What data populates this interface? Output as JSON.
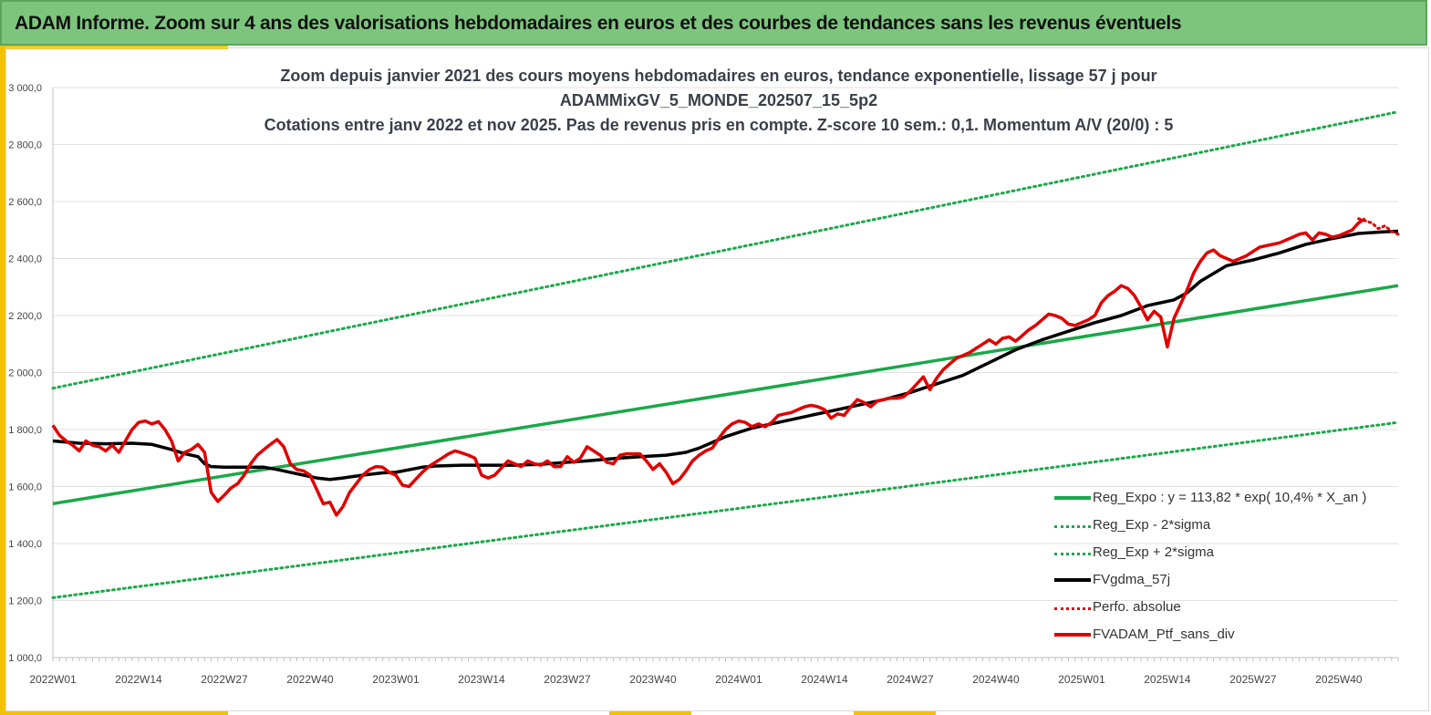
{
  "header": {
    "title": "ADAM Informe. Zoom sur 4 ans des valorisations hebdomadaires en euros et des courbes de tendances sans les revenus éventuels"
  },
  "colors": {
    "banner": "#7dc57d",
    "accent": "#f2c200",
    "trend_green": "#1aa84a",
    "black": "#000000",
    "red": "#e00000"
  },
  "chart_data": {
    "type": "line",
    "title_lines": [
      "Zoom depuis janvier 2021 des cours moyens hebdomadaires  en euros, tendance exponentielle, lissage 57 j pour",
      "ADAMMixGV_5_MONDE_202507_15_5p2",
      "Cotations  entre janv 2022 et nov 2025. Pas de revenus pris en compte. Z-score 10 sem.: 0,1. Momentum  A/V (20/0) : 5"
    ],
    "x_tick_labels": [
      "2022W01",
      "2022W14",
      "2022W27",
      "2022W40",
      "2023W01",
      "2023W14",
      "2023W27",
      "2023W40",
      "2024W01",
      "2024W14",
      "2024W27",
      "2024W40",
      "2025W01",
      "2025W14",
      "2025W27",
      "2025W40"
    ],
    "x_tick_week_index": [
      0,
      13,
      26,
      39,
      52,
      65,
      78,
      91,
      104,
      117,
      130,
      143,
      156,
      169,
      182,
      195
    ],
    "x_range_weeks": [
      0,
      204
    ],
    "ylim": [
      1000,
      3000
    ],
    "y_ticks": [
      1000,
      1200,
      1400,
      1600,
      1800,
      2000,
      2200,
      2400,
      2600,
      2800,
      3000
    ],
    "y_tick_labels": [
      "1 000,0",
      "1 200,0",
      "1 400,0",
      "1 600,0",
      "1 800,0",
      "2 000,0",
      "2 200,0",
      "2 400,0",
      "2 600,0",
      "2 800,0",
      "3 000,0"
    ],
    "grid": "horizontal",
    "legend_position": "bottom-right",
    "series": [
      {
        "name": "Reg_Expo : y = 113,82 * exp( 10,4% *  X_an )",
        "style": "solid",
        "color": "#1aa84a",
        "points": [
          [
            0,
            1540
          ],
          [
            204,
            2305
          ]
        ]
      },
      {
        "name": "Reg_Exp - 2*sigma",
        "style": "dotted",
        "color": "#1aa84a",
        "points": [
          [
            0,
            1210
          ],
          [
            204,
            1825
          ]
        ]
      },
      {
        "name": "Reg_Exp + 2*sigma",
        "style": "dotted",
        "color": "#1aa84a",
        "points": [
          [
            0,
            1945
          ],
          [
            204,
            2915
          ]
        ]
      },
      {
        "name": "FVgdma_57j",
        "style": "solid",
        "color": "#000000",
        "points": [
          [
            0,
            1760
          ],
          [
            4,
            1752
          ],
          [
            8,
            1750
          ],
          [
            12,
            1752
          ],
          [
            15,
            1748
          ],
          [
            18,
            1730
          ],
          [
            20,
            1715
          ],
          [
            22,
            1705
          ],
          [
            23,
            1680
          ],
          [
            24,
            1670
          ],
          [
            26,
            1668
          ],
          [
            30,
            1668
          ],
          [
            32,
            1668
          ],
          [
            34,
            1660
          ],
          [
            36,
            1650
          ],
          [
            38,
            1640
          ],
          [
            40,
            1630
          ],
          [
            42,
            1625
          ],
          [
            44,
            1630
          ],
          [
            47,
            1640
          ],
          [
            50,
            1648
          ],
          [
            52,
            1650
          ],
          [
            56,
            1668
          ],
          [
            58,
            1672
          ],
          [
            62,
            1675
          ],
          [
            66,
            1675
          ],
          [
            70,
            1675
          ],
          [
            74,
            1678
          ],
          [
            78,
            1685
          ],
          [
            82,
            1692
          ],
          [
            86,
            1700
          ],
          [
            90,
            1706
          ],
          [
            93,
            1710
          ],
          [
            96,
            1720
          ],
          [
            98,
            1735
          ],
          [
            100,
            1755
          ],
          [
            102,
            1775
          ],
          [
            104,
            1790
          ],
          [
            106,
            1805
          ],
          [
            108,
            1815
          ],
          [
            110,
            1825
          ],
          [
            114,
            1845
          ],
          [
            118,
            1865
          ],
          [
            122,
            1885
          ],
          [
            126,
            1905
          ],
          [
            130,
            1930
          ],
          [
            134,
            1960
          ],
          [
            138,
            1990
          ],
          [
            142,
            2035
          ],
          [
            146,
            2080
          ],
          [
            150,
            2115
          ],
          [
            154,
            2145
          ],
          [
            158,
            2175
          ],
          [
            162,
            2200
          ],
          [
            166,
            2235
          ],
          [
            170,
            2255
          ],
          [
            172,
            2280
          ],
          [
            174,
            2320
          ],
          [
            178,
            2375
          ],
          [
            182,
            2395
          ],
          [
            186,
            2420
          ],
          [
            190,
            2450
          ],
          [
            194,
            2470
          ],
          [
            198,
            2488
          ],
          [
            202,
            2494
          ],
          [
            204,
            2496
          ]
        ]
      },
      {
        "name": "Perfo. absolue",
        "style": "dotted",
        "color": "#e00000",
        "points": [
          [
            198,
            2540
          ],
          [
            200,
            2525
          ],
          [
            201,
            2505
          ],
          [
            202,
            2515
          ],
          [
            203,
            2495
          ],
          [
            204,
            2485
          ]
        ]
      },
      {
        "name": "FVADAM_Ptf_sans_div",
        "style": "solid",
        "color": "#e00000",
        "points": [
          [
            0,
            1815
          ],
          [
            1,
            1780
          ],
          [
            2,
            1760
          ],
          [
            3,
            1745
          ],
          [
            4,
            1725
          ],
          [
            5,
            1760
          ],
          [
            6,
            1745
          ],
          [
            7,
            1740
          ],
          [
            8,
            1725
          ],
          [
            9,
            1745
          ],
          [
            10,
            1720
          ],
          [
            11,
            1760
          ],
          [
            12,
            1800
          ],
          [
            13,
            1825
          ],
          [
            14,
            1830
          ],
          [
            15,
            1820
          ],
          [
            16,
            1828
          ],
          [
            17,
            1800
          ],
          [
            18,
            1760
          ],
          [
            19,
            1690
          ],
          [
            20,
            1720
          ],
          [
            21,
            1730
          ],
          [
            22,
            1748
          ],
          [
            23,
            1720
          ],
          [
            24,
            1580
          ],
          [
            25,
            1548
          ],
          [
            26,
            1570
          ],
          [
            27,
            1595
          ],
          [
            28,
            1610
          ],
          [
            29,
            1640
          ],
          [
            30,
            1680
          ],
          [
            31,
            1710
          ],
          [
            32,
            1730
          ],
          [
            33,
            1748
          ],
          [
            34,
            1765
          ],
          [
            35,
            1740
          ],
          [
            36,
            1680
          ],
          [
            37,
            1660
          ],
          [
            38,
            1655
          ],
          [
            39,
            1640
          ],
          [
            40,
            1590
          ],
          [
            41,
            1540
          ],
          [
            42,
            1545
          ],
          [
            43,
            1500
          ],
          [
            44,
            1530
          ],
          [
            45,
            1580
          ],
          [
            46,
            1610
          ],
          [
            47,
            1640
          ],
          [
            48,
            1660
          ],
          [
            49,
            1670
          ],
          [
            50,
            1668
          ],
          [
            51,
            1650
          ],
          [
            52,
            1640
          ],
          [
            53,
            1605
          ],
          [
            54,
            1600
          ],
          [
            55,
            1625
          ],
          [
            56,
            1650
          ],
          [
            57,
            1670
          ],
          [
            58,
            1685
          ],
          [
            59,
            1700
          ],
          [
            60,
            1715
          ],
          [
            61,
            1725
          ],
          [
            62,
            1718
          ],
          [
            63,
            1710
          ],
          [
            64,
            1700
          ],
          [
            65,
            1640
          ],
          [
            66,
            1630
          ],
          [
            67,
            1640
          ],
          [
            68,
            1665
          ],
          [
            69,
            1690
          ],
          [
            70,
            1680
          ],
          [
            71,
            1670
          ],
          [
            72,
            1690
          ],
          [
            73,
            1680
          ],
          [
            74,
            1675
          ],
          [
            75,
            1690
          ],
          [
            76,
            1670
          ],
          [
            77,
            1670
          ],
          [
            78,
            1705
          ],
          [
            79,
            1685
          ],
          [
            80,
            1700
          ],
          [
            81,
            1740
          ],
          [
            82,
            1725
          ],
          [
            83,
            1710
          ],
          [
            84,
            1685
          ],
          [
            85,
            1680
          ],
          [
            86,
            1710
          ],
          [
            87,
            1715
          ],
          [
            88,
            1715
          ],
          [
            89,
            1715
          ],
          [
            90,
            1690
          ],
          [
            91,
            1660
          ],
          [
            92,
            1680
          ],
          [
            93,
            1650
          ],
          [
            94,
            1610
          ],
          [
            95,
            1625
          ],
          [
            96,
            1655
          ],
          [
            97,
            1690
          ],
          [
            98,
            1710
          ],
          [
            99,
            1725
          ],
          [
            100,
            1735
          ],
          [
            101,
            1770
          ],
          [
            102,
            1800
          ],
          [
            103,
            1820
          ],
          [
            104,
            1830
          ],
          [
            105,
            1825
          ],
          [
            106,
            1810
          ],
          [
            107,
            1820
          ],
          [
            108,
            1810
          ],
          [
            109,
            1825
          ],
          [
            110,
            1850
          ],
          [
            111,
            1855
          ],
          [
            112,
            1860
          ],
          [
            113,
            1870
          ],
          [
            114,
            1880
          ],
          [
            115,
            1885
          ],
          [
            116,
            1880
          ],
          [
            117,
            1870
          ],
          [
            118,
            1840
          ],
          [
            119,
            1855
          ],
          [
            120,
            1850
          ],
          [
            121,
            1880
          ],
          [
            122,
            1905
          ],
          [
            123,
            1895
          ],
          [
            124,
            1880
          ],
          [
            125,
            1900
          ],
          [
            126,
            1905
          ],
          [
            127,
            1910
          ],
          [
            128,
            1910
          ],
          [
            129,
            1915
          ],
          [
            130,
            1935
          ],
          [
            131,
            1960
          ],
          [
            132,
            1985
          ],
          [
            133,
            1940
          ],
          [
            134,
            1980
          ],
          [
            135,
            2010
          ],
          [
            136,
            2030
          ],
          [
            137,
            2050
          ],
          [
            138,
            2060
          ],
          [
            139,
            2070
          ],
          [
            140,
            2085
          ],
          [
            141,
            2100
          ],
          [
            142,
            2115
          ],
          [
            143,
            2100
          ],
          [
            144,
            2120
          ],
          [
            145,
            2125
          ],
          [
            146,
            2110
          ],
          [
            147,
            2130
          ],
          [
            148,
            2150
          ],
          [
            149,
            2165
          ],
          [
            150,
            2185
          ],
          [
            151,
            2205
          ],
          [
            152,
            2200
          ],
          [
            153,
            2190
          ],
          [
            154,
            2170
          ],
          [
            155,
            2165
          ],
          [
            156,
            2175
          ],
          [
            157,
            2185
          ],
          [
            158,
            2200
          ],
          [
            159,
            2245
          ],
          [
            160,
            2270
          ],
          [
            161,
            2285
          ],
          [
            162,
            2305
          ],
          [
            163,
            2295
          ],
          [
            164,
            2270
          ],
          [
            165,
            2230
          ],
          [
            166,
            2185
          ],
          [
            167,
            2215
          ],
          [
            168,
            2195
          ],
          [
            169,
            2090
          ],
          [
            170,
            2190
          ],
          [
            171,
            2240
          ],
          [
            172,
            2290
          ],
          [
            173,
            2350
          ],
          [
            174,
            2390
          ],
          [
            175,
            2420
          ],
          [
            176,
            2430
          ],
          [
            177,
            2410
          ],
          [
            178,
            2400
          ],
          [
            179,
            2390
          ],
          [
            180,
            2400
          ],
          [
            181,
            2410
          ],
          [
            182,
            2425
          ],
          [
            183,
            2440
          ],
          [
            184,
            2445
          ],
          [
            185,
            2450
          ],
          [
            186,
            2455
          ],
          [
            187,
            2465
          ],
          [
            188,
            2475
          ],
          [
            189,
            2485
          ],
          [
            190,
            2490
          ],
          [
            191,
            2465
          ],
          [
            192,
            2490
          ],
          [
            193,
            2485
          ],
          [
            194,
            2475
          ],
          [
            195,
            2480
          ],
          [
            196,
            2490
          ],
          [
            197,
            2500
          ],
          [
            198,
            2525
          ],
          [
            199,
            2540
          ]
        ]
      }
    ]
  }
}
